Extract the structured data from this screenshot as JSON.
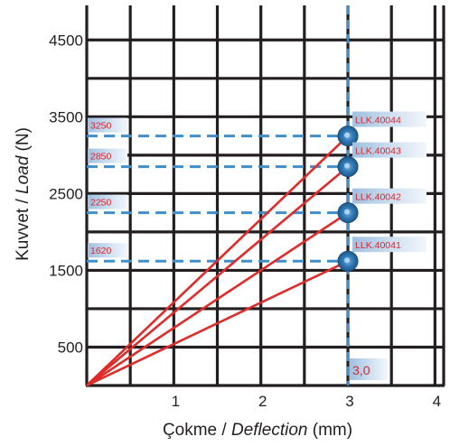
{
  "chart_data": {
    "type": "line",
    "xlabel_plain": "Çokme / ",
    "xlabel_italic": "Deflection",
    "xlabel_unit": " (mm)",
    "ylabel_plain": "Kuvvet / ",
    "ylabel_italic": "Load",
    "ylabel_unit": " (N)",
    "xlim": [
      0,
      4.1
    ],
    "ylim": [
      0,
      4950
    ],
    "grid": true,
    "x_ticks": [
      {
        "value": 1,
        "label": "1"
      },
      {
        "value": 2,
        "label": "2"
      },
      {
        "value": 3,
        "label": "3"
      },
      {
        "value": 4,
        "label": "4"
      }
    ],
    "y_ticks": [
      {
        "value": 500,
        "label": "500"
      },
      {
        "value": 1500,
        "label": "1500"
      },
      {
        "value": 2500,
        "label": "2500"
      },
      {
        "value": 3500,
        "label": "3500"
      },
      {
        "value": 4500,
        "label": "4500"
      }
    ],
    "series": [
      {
        "name": "LLK.40044",
        "x": [
          0,
          3.0
        ],
        "y": [
          0,
          3250
        ],
        "value_label": "3250"
      },
      {
        "name": "LLK.40043",
        "x": [
          0,
          3.0
        ],
        "y": [
          0,
          2850
        ],
        "value_label": "2850"
      },
      {
        "name": "LLK.40042",
        "x": [
          0,
          3.0
        ],
        "y": [
          0,
          2250
        ],
        "value_label": "2250"
      },
      {
        "name": "LLK.40041",
        "x": [
          0,
          3.0
        ],
        "y": [
          0,
          1620
        ],
        "value_label": "1620"
      }
    ],
    "reference_line": {
      "x": 3.0,
      "label": "3,0"
    },
    "colors": {
      "line": "#e02b2b",
      "grid": "#231f20",
      "reference": "#3f8fcc",
      "marker": "#2f78b4",
      "tag_bg": "#c3d6ea",
      "tag_text": "#d8262f"
    }
  }
}
